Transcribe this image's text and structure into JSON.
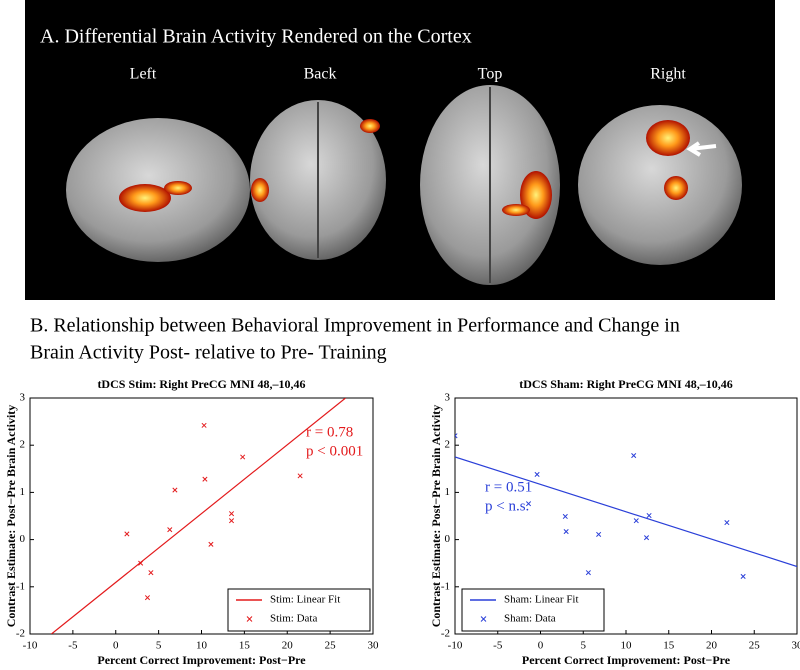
{
  "panel_a": {
    "title": "A. Differential Brain Activity Rendered on the Cortex",
    "views": [
      "Left",
      "Back",
      "Top",
      "Right"
    ]
  },
  "panel_b": {
    "title_lines": [
      "B. Relationship between Behavioral Improvement in Performance and Change in",
      "Brain Activity Post- relative to Pre- Training"
    ]
  },
  "chart_data": [
    {
      "type": "scatter",
      "title": "tDCS Stim: Right PreCG MNI 48,–10,46",
      "x_label": "Percent Correct Improvement: Post−Pre",
      "y_label": "Contrast Estimate: Post−Pre Brain Activity",
      "xlim": [
        -10,
        30
      ],
      "ylim": [
        -2,
        3
      ],
      "xticks": [
        -10,
        -5,
        0,
        5,
        10,
        15,
        20,
        25,
        30
      ],
      "yticks": [
        -2,
        -1,
        0,
        1,
        2,
        3
      ],
      "legend": "lower right",
      "annotations": [
        "r = 0.78",
        "p < 0.001"
      ],
      "annotation_color": "#e31a1c",
      "series": [
        {
          "name": "Stim: Linear Fit",
          "kind": "line",
          "color": "#e31a1c",
          "x": [
            -7.5,
            26.8
          ],
          "values": [
            -2,
            3
          ]
        },
        {
          "name": "Stim: Data",
          "kind": "marker",
          "color": "#e31a1c",
          "x": [
            1.3,
            2.9,
            4.1,
            3.7,
            6.3,
            6.9,
            10.3,
            10.4,
            11.1,
            13.5,
            13.5,
            14.8,
            21.5
          ],
          "values": [
            0.12,
            -0.5,
            -0.7,
            -1.23,
            0.21,
            1.05,
            2.42,
            1.28,
            -0.1,
            0.55,
            0.4,
            1.75,
            1.35
          ]
        }
      ]
    },
    {
      "type": "scatter",
      "title": "tDCS Sham: Right PreCG MNI 48,–10,46",
      "x_label": "Percent Correct Improvement: Post−Pre",
      "y_label": "Contrast Estimate: Post−Pre Brain Activity",
      "xlim": [
        -10,
        30
      ],
      "ylim": [
        -2,
        3
      ],
      "xticks": [
        -10,
        -5,
        0,
        5,
        10,
        15,
        20,
        25,
        30
      ],
      "yticks": [
        -2,
        -1,
        0,
        1,
        2,
        3
      ],
      "legend": "lower left",
      "annotations": [
        "r = 0.51",
        "p < n.s."
      ],
      "annotation_color": "#2a3fd8",
      "series": [
        {
          "name": "Sham: Linear Fit",
          "kind": "line",
          "color": "#2a3fd8",
          "x": [
            -10,
            30
          ],
          "values": [
            1.75,
            -0.57
          ]
        },
        {
          "name": "Sham: Data",
          "kind": "marker",
          "color": "#2a3fd8",
          "x": [
            -10,
            -1.4,
            -0.4,
            2.9,
            3.0,
            6.8,
            5.6,
            10.9,
            11.2,
            12.7,
            12.4,
            21.8,
            23.7
          ],
          "values": [
            2.2,
            0.76,
            1.38,
            0.49,
            0.17,
            0.11,
            -0.7,
            1.78,
            0.4,
            0.51,
            0.04,
            0.36,
            -0.78
          ]
        }
      ]
    }
  ]
}
